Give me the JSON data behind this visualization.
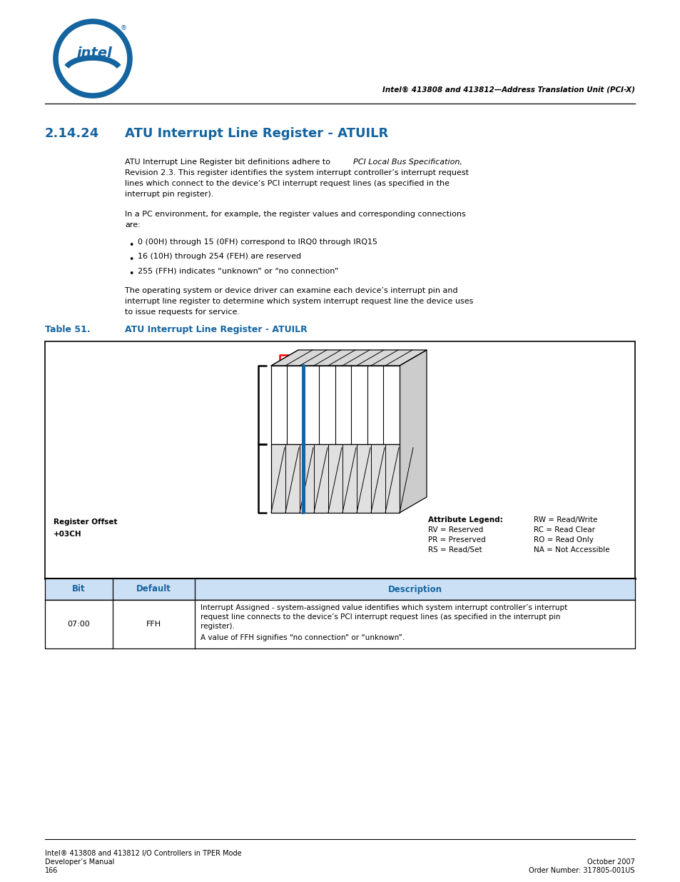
{
  "page_width": 9.54,
  "page_height": 12.35,
  "bg_color": "#ffffff",
  "header_text": "Intel® 413808 and 413812—Address Translation Unit (PCI-X)",
  "section_number": "2.14.24",
  "section_title": "ATU Interrupt Line Register - ATUILR",
  "section_color": "#1464A0",
  "body_para1_line1": "ATU Interrupt Line Register bit definitions adhere to ",
  "body_para1_italic": "PCI Local Bus Specification,",
  "body_para1_line2": "Revision 2.3. This register identifies the system interrupt controller’s interrupt request",
  "body_para1_line3": "lines which connect to the device’s PCI interrupt request lines (as specified in the",
  "body_para1_line4": "interrupt pin register).",
  "body_para2_line1": "In a PC environment, for example, the register values and corresponding connections",
  "body_para2_line2": "are:",
  "bullet1": "0 (00H) through 15 (0FH) correspond to IRQ0 through IRQ15",
  "bullet2": "16 (10H) through 254 (FEH) are reserved",
  "bullet3": "255 (FFH) indicates “unknown” or “no connection”",
  "body_para3_line1": "The operating system or device driver can examine each device’s interrupt pin and",
  "body_para3_line2": "interrupt line register to determine which system interrupt request line the device uses",
  "body_para3_line3": "to issue requests for service.",
  "table_label": "Table 51.",
  "table_title": "ATU Interrupt Line Register - ATUILR",
  "register_offset_line1": "Register Offset",
  "register_offset_line2": "+03CH",
  "attr_col1_line1": "Attribute Legend:",
  "attr_col1_line2": "RV = Reserved",
  "attr_col1_line3": "PR = Preserved",
  "attr_col1_line4": "RS = Read/Set",
  "attr_col2_line1": "RW = Read/Write",
  "attr_col2_line2": "RC = Read Clear",
  "attr_col2_line3": "RO = Read Only",
  "attr_col2_line4": "NA = Not Accessible",
  "tbl_hdr_bit": "Bit",
  "tbl_hdr_default": "Default",
  "tbl_hdr_desc": "Description",
  "tbl_row_bit": "07:00",
  "tbl_row_default": "FFH",
  "tbl_desc1": "Interrupt Assigned - system-assigned value identifies which system interrupt controller’s interrupt",
  "tbl_desc2": "request line connects to the device’s PCI interrupt request lines (as specified in the interrupt pin",
  "tbl_desc3": "register).",
  "tbl_desc4": "A value of FFH signifies “no connection” or “unknown”.",
  "footer_l1": "Intel® 413808 and 413812 I/O Controllers in TPER Mode",
  "footer_l2": "Developer’s Manual",
  "footer_l3": "166",
  "footer_r1": "October 2007",
  "footer_r2": "Order Number: 317805-001US"
}
